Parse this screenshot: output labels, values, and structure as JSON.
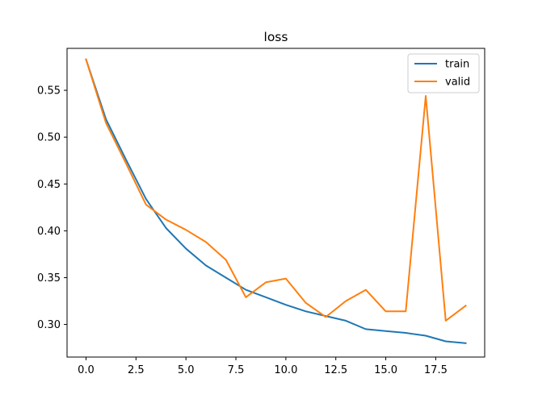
{
  "chart_data": {
    "type": "line",
    "title": "loss",
    "xlabel": "",
    "ylabel": "",
    "x": [
      0,
      1,
      2,
      3,
      4,
      5,
      6,
      7,
      8,
      9,
      10,
      11,
      12,
      13,
      14,
      15,
      16,
      17,
      18,
      19
    ],
    "series": [
      {
        "name": "train",
        "color": "#1f77b4",
        "values": [
          0.583,
          0.519,
          0.476,
          0.434,
          0.403,
          0.381,
          0.363,
          0.35,
          0.337,
          0.329,
          0.321,
          0.314,
          0.309,
          0.304,
          0.295,
          0.293,
          0.291,
          0.288,
          0.282,
          0.28
        ]
      },
      {
        "name": "valid",
        "color": "#ff7f0e",
        "values": [
          0.583,
          0.515,
          0.472,
          0.428,
          0.412,
          0.401,
          0.388,
          0.369,
          0.329,
          0.345,
          0.349,
          0.323,
          0.308,
          0.325,
          0.337,
          0.314,
          0.314,
          0.544,
          0.304,
          0.32
        ]
      }
    ],
    "xlim": [
      -0.95,
      19.95
    ],
    "ylim": [
      0.2652,
      0.5948
    ],
    "xticks": [
      0.0,
      2.5,
      5.0,
      7.5,
      10.0,
      12.5,
      15.0,
      17.5
    ],
    "xtick_labels": [
      "0.0",
      "2.5",
      "5.0",
      "7.5",
      "10.0",
      "12.5",
      "15.0",
      "17.5"
    ],
    "yticks": [
      0.3,
      0.35,
      0.4,
      0.45,
      0.5,
      0.55
    ],
    "ytick_labels": [
      "0.30",
      "0.35",
      "0.40",
      "0.45",
      "0.50",
      "0.55"
    ],
    "grid": false,
    "legend_position": "top-right"
  }
}
